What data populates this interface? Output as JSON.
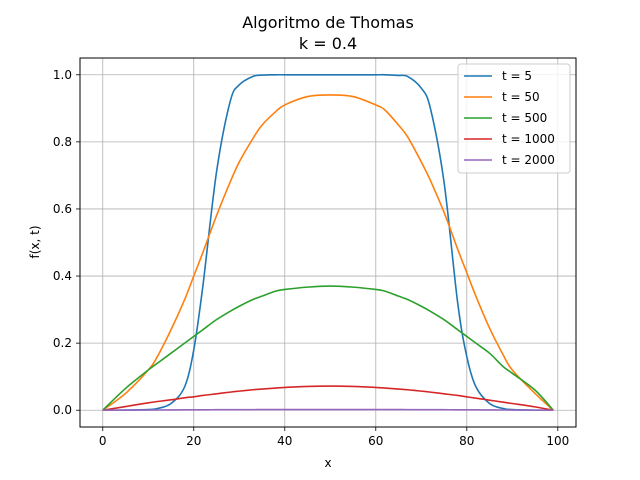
{
  "chart_data": {
    "type": "line",
    "title": "Algoritmo de Thomas",
    "subtitle": "k = 0.4",
    "xlabel": "x",
    "ylabel": "f(x, t)",
    "xlim": [
      -5,
      104
    ],
    "ylim": [
      -0.05,
      1.05
    ],
    "xticks": [
      0,
      20,
      40,
      60,
      80,
      100
    ],
    "yticks": [
      0.0,
      0.2,
      0.4,
      0.6,
      0.8,
      1.0
    ],
    "xtick_labels": [
      "0",
      "20",
      "40",
      "60",
      "80",
      "100"
    ],
    "ytick_labels": [
      "0.0",
      "0.2",
      "0.4",
      "0.6",
      "0.8",
      "1.0"
    ],
    "grid": true,
    "legend_position": "top-right",
    "x": [
      0,
      5,
      10,
      12,
      15,
      18,
      20,
      22,
      25,
      28,
      30,
      33,
      35,
      38,
      40,
      45,
      50,
      55,
      60,
      62,
      65,
      67,
      70,
      72,
      75,
      78,
      80,
      82,
      85,
      88,
      90,
      95,
      99
    ],
    "series": [
      {
        "name": "t = 5",
        "color": "#1f77b4",
        "values": [
          0,
          0.0005,
          0.002,
          0.005,
          0.02,
          0.07,
          0.18,
          0.37,
          0.71,
          0.92,
          0.97,
          0.995,
          0.999,
          1.0,
          1.0,
          1.0,
          1.0,
          1.0,
          1.0,
          1.0,
          0.998,
          0.995,
          0.96,
          0.9,
          0.68,
          0.32,
          0.16,
          0.07,
          0.02,
          0.005,
          0.002,
          0.0003,
          0
        ]
      },
      {
        "name": "t = 50",
        "color": "#ff7f0e",
        "values": [
          0,
          0.05,
          0.12,
          0.16,
          0.24,
          0.33,
          0.4,
          0.47,
          0.58,
          0.68,
          0.74,
          0.81,
          0.85,
          0.89,
          0.91,
          0.935,
          0.94,
          0.935,
          0.91,
          0.895,
          0.85,
          0.815,
          0.74,
          0.685,
          0.59,
          0.48,
          0.41,
          0.34,
          0.245,
          0.165,
          0.12,
          0.05,
          0
        ]
      },
      {
        "name": "t = 500",
        "color": "#2ca02c",
        "values": [
          0,
          0.065,
          0.12,
          0.14,
          0.17,
          0.2,
          0.22,
          0.24,
          0.27,
          0.295,
          0.31,
          0.33,
          0.34,
          0.355,
          0.36,
          0.367,
          0.37,
          0.367,
          0.36,
          0.355,
          0.34,
          0.33,
          0.31,
          0.295,
          0.27,
          0.24,
          0.22,
          0.2,
          0.17,
          0.13,
          0.11,
          0.06,
          0
        ]
      },
      {
        "name": "t = 1000",
        "color": "#d62728",
        "values": [
          0,
          0.011,
          0.022,
          0.026,
          0.031,
          0.037,
          0.04,
          0.044,
          0.049,
          0.054,
          0.057,
          0.061,
          0.063,
          0.066,
          0.068,
          0.071,
          0.072,
          0.071,
          0.068,
          0.066,
          0.063,
          0.061,
          0.057,
          0.054,
          0.049,
          0.044,
          0.04,
          0.036,
          0.03,
          0.024,
          0.02,
          0.01,
          0
        ]
      },
      {
        "name": "t = 2000",
        "color": "#9467bd",
        "values": [
          0,
          0.0003,
          0.0006,
          0.0007,
          0.0009,
          0.0011,
          0.0012,
          0.0013,
          0.0015,
          0.0016,
          0.0017,
          0.0018,
          0.0019,
          0.002,
          0.002,
          0.0021,
          0.0021,
          0.0021,
          0.002,
          0.002,
          0.0019,
          0.0018,
          0.0017,
          0.0016,
          0.0015,
          0.0013,
          0.0012,
          0.0011,
          0.0009,
          0.0007,
          0.0006,
          0.0003,
          0
        ]
      }
    ]
  }
}
